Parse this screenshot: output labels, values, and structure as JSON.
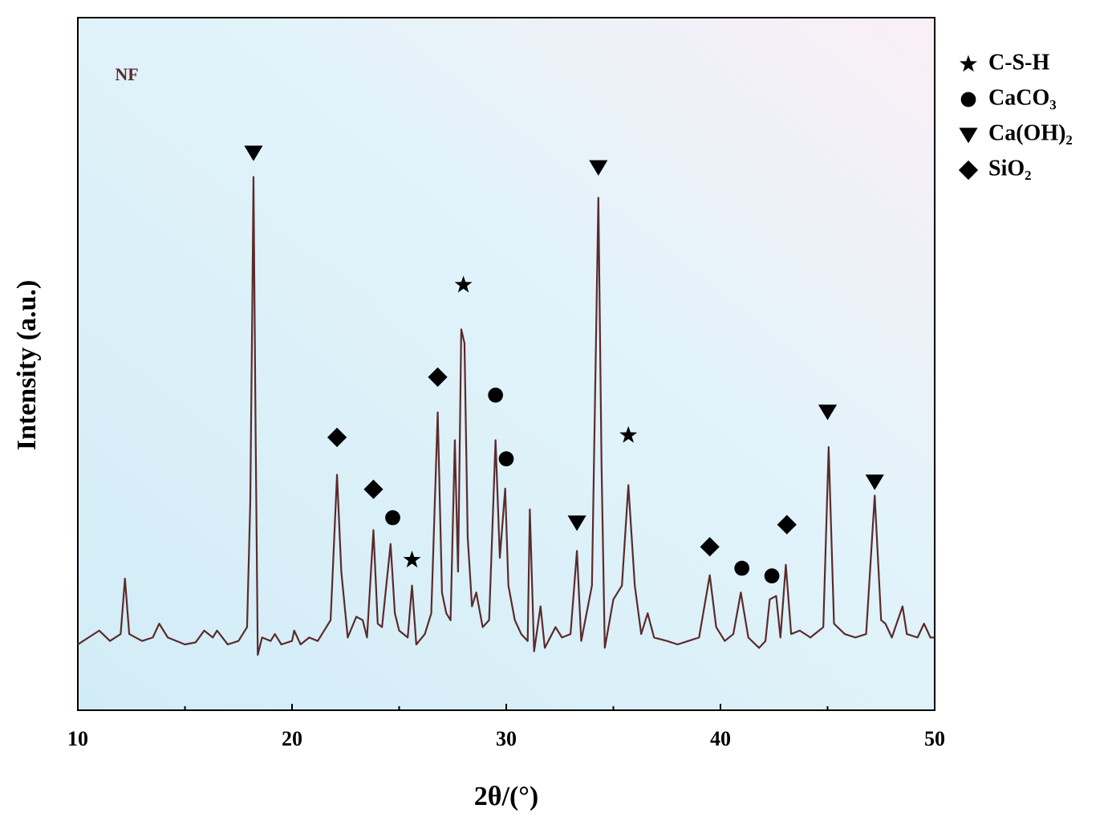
{
  "chart_data": {
    "type": "line",
    "annotation": "NF",
    "x_label": "2θ/(°)",
    "y_label": "Intensity (a.u.)",
    "xlim": [
      10,
      50
    ],
    "ylim": [
      0,
      100
    ],
    "xticks": [
      10,
      20,
      30,
      40,
      50
    ],
    "xminor_ticks": [
      15,
      25,
      35,
      45
    ],
    "series": [
      {
        "color": "#5b2b2b",
        "x": [
          10.0,
          10.5,
          11.0,
          11.5,
          12.0,
          12.2,
          12.4,
          13.0,
          13.5,
          13.8,
          14.2,
          15.0,
          15.5,
          15.9,
          16.3,
          16.5,
          17.0,
          17.5,
          17.9,
          18.05,
          18.15,
          18.2,
          18.3,
          18.4,
          18.6,
          19.0,
          19.2,
          19.5,
          20.0,
          20.1,
          20.4,
          20.8,
          21.2,
          21.8,
          22.1,
          22.3,
          22.6,
          23.0,
          23.3,
          23.5,
          23.8,
          24.0,
          24.2,
          24.6,
          24.8,
          25.0,
          25.4,
          25.6,
          25.8,
          26.2,
          26.5,
          26.8,
          27.0,
          27.2,
          27.4,
          27.6,
          27.75,
          27.9,
          28.05,
          28.2,
          28.4,
          28.6,
          28.9,
          29.2,
          29.5,
          29.7,
          29.95,
          30.1,
          30.4,
          30.7,
          31.0,
          31.1,
          31.3,
          31.6,
          31.8,
          32.3,
          32.6,
          33.0,
          33.3,
          33.5,
          34.0,
          34.3,
          34.45,
          34.6,
          35.0,
          35.4,
          35.7,
          36.0,
          36.3,
          36.6,
          36.9,
          37.5,
          38.0,
          38.5,
          39.0,
          39.5,
          39.8,
          40.2,
          40.6,
          40.95,
          41.3,
          41.8,
          42.1,
          42.3,
          42.6,
          42.8,
          43.05,
          43.3,
          43.7,
          44.2,
          44.8,
          45.05,
          45.3,
          45.8,
          46.3,
          46.8,
          47.2,
          47.5,
          47.7,
          48.0,
          48.5,
          48.7,
          49.2,
          49.5,
          49.8,
          50.0
        ],
        "values": [
          9.5,
          10.5,
          11.5,
          10,
          11,
          19,
          11,
          10,
          10.5,
          12.5,
          10.5,
          9.5,
          9.8,
          11.5,
          10.5,
          11.5,
          9.5,
          10,
          12,
          30,
          60,
          77,
          40,
          8,
          10.5,
          10,
          11,
          9.5,
          10,
          11.5,
          9.5,
          10.5,
          10,
          13,
          34,
          20,
          10.5,
          13.5,
          13,
          10.5,
          26,
          12.5,
          12,
          24,
          14,
          11.5,
          10.5,
          18,
          9.5,
          11,
          14,
          43,
          17,
          14,
          13,
          39,
          20,
          55,
          53,
          25,
          15,
          17,
          12,
          13,
          39,
          22,
          32,
          18,
          13,
          11,
          10,
          29,
          8.5,
          15,
          9,
          12,
          10.5,
          11,
          23,
          10,
          18,
          74,
          35,
          9,
          16,
          18,
          32.5,
          18,
          11,
          14,
          10.5,
          10,
          9.5,
          10,
          10.5,
          19.5,
          12,
          10,
          11,
          17,
          10.5,
          9,
          10,
          16,
          16.5,
          10.5,
          21,
          11,
          11.5,
          10.5,
          12,
          38,
          12.5,
          11,
          10.5,
          11,
          31,
          13,
          12.5,
          10.5,
          15,
          11,
          10.5,
          12.5,
          10.5,
          10.5
        ]
      }
    ],
    "phases": [
      {
        "name": "C-S-H",
        "marker": "star",
        "x": [
          28.0,
          25.6,
          35.7
        ],
        "y": [
          61.4,
          21.7,
          39.7
        ]
      },
      {
        "name": "CaCO₃",
        "marker": "circle",
        "x": [
          24.7,
          29.5,
          30.0,
          41.0,
          42.4
        ],
        "y": [
          27.8,
          45.5,
          36.3,
          20.5,
          19.4
        ]
      },
      {
        "name": "Ca(OH)₂",
        "marker": "triangle",
        "x": [
          18.2,
          34.3,
          33.3,
          45.0,
          47.2
        ],
        "y": [
          80.5,
          78.4,
          27.1,
          43.1,
          33.0
        ]
      },
      {
        "name": "SiO₂",
        "marker": "diamond",
        "x": [
          22.1,
          23.8,
          26.8,
          39.5,
          43.1
        ],
        "y": [
          39.4,
          31.9,
          48.1,
          23.6,
          26.8
        ]
      }
    ]
  }
}
